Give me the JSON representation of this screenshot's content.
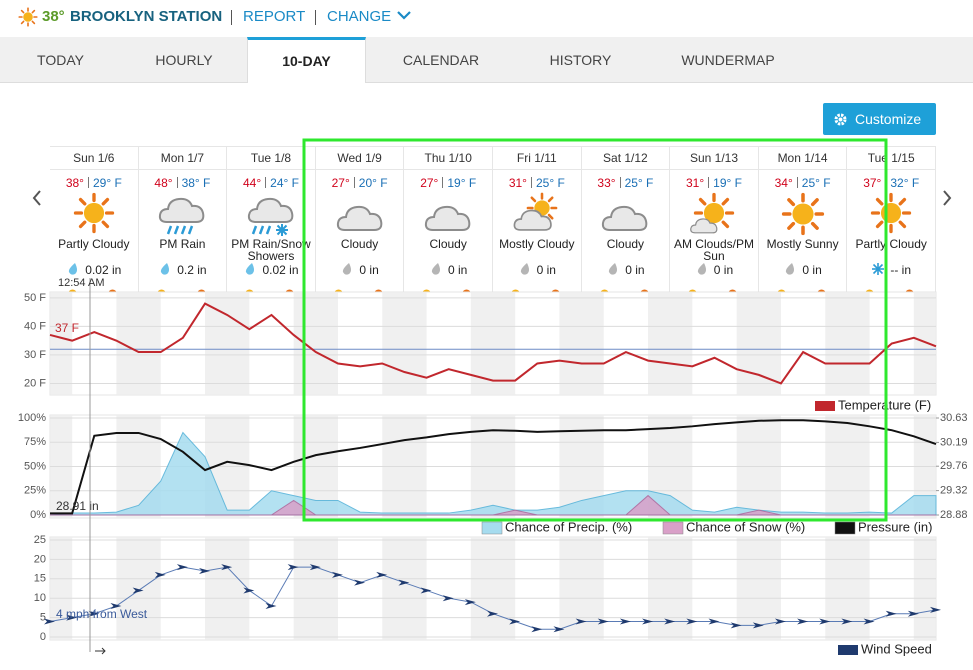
{
  "header": {
    "temp": "38°",
    "station": "BROOKLYN STATION",
    "report": "REPORT",
    "change": "CHANGE"
  },
  "tabs": [
    {
      "label": "TODAY"
    },
    {
      "label": "HOURLY"
    },
    {
      "label": "10-DAY",
      "active": true
    },
    {
      "label": "CALENDAR"
    },
    {
      "label": "HISTORY"
    },
    {
      "label": "WUNDERMAP"
    }
  ],
  "customize": "Customize",
  "days": [
    {
      "name": "Sun 1/6",
      "high": "38°",
      "low": "29° F",
      "condition": "Partly Cloudy",
      "precip": "0.02 in"
    },
    {
      "name": "Mon 1/7",
      "high": "48°",
      "low": "38° F",
      "condition": "PM Rain",
      "precip": "0.2 in"
    },
    {
      "name": "Tue 1/8",
      "high": "44°",
      "low": "24° F",
      "condition": "PM Rain/Snow Showers",
      "precip": "0.02 in"
    },
    {
      "name": "Wed 1/9",
      "high": "27°",
      "low": "20° F",
      "condition": "Cloudy",
      "precip": "0 in"
    },
    {
      "name": "Thu 1/10",
      "high": "27°",
      "low": "19° F",
      "condition": "Cloudy",
      "precip": "0 in"
    },
    {
      "name": "Fri 1/11",
      "high": "31°",
      "low": "25° F",
      "condition": "Mostly Cloudy",
      "precip": "0 in"
    },
    {
      "name": "Sat 1/12",
      "high": "33°",
      "low": "25° F",
      "condition": "Cloudy",
      "precip": "0 in"
    },
    {
      "name": "Sun 1/13",
      "high": "31°",
      "low": "19° F",
      "condition": "AM Clouds/PM Sun",
      "precip": "0 in"
    },
    {
      "name": "Mon 1/14",
      "high": "34°",
      "low": "25° F",
      "condition": "Mostly Sunny",
      "precip": "0 in"
    },
    {
      "name": "Tue 1/15",
      "high": "37°",
      "low": "32° F",
      "condition": "Partly Cloudy",
      "precip": "-- in"
    }
  ],
  "now_label": "12:54 AM",
  "chart_data": [
    {
      "type": "line",
      "name": "Temperature (F)",
      "color": "#c1272d",
      "values": [
        37,
        35,
        38,
        35,
        31,
        31,
        36,
        48,
        44,
        39,
        44,
        37,
        31,
        27,
        26,
        27,
        24,
        22,
        25,
        23,
        21,
        21,
        27,
        28,
        27,
        27,
        31,
        28,
        27,
        26,
        29,
        25,
        23,
        20,
        31,
        27,
        27,
        27,
        34,
        36,
        33
      ],
      "ylim": [
        17,
        51
      ],
      "yticks": [
        {
          "value": 20,
          "label": "20 F"
        },
        {
          "value": 30,
          "label": "30 F"
        },
        {
          "value": 40,
          "label": "40 F"
        },
        {
          "value": 50,
          "label": "50 F"
        }
      ],
      "freezing": 32,
      "current_label": "37 F"
    },
    {
      "type": "area",
      "series": [
        {
          "name": "Chance of Precip. (%)",
          "color": "#a6dcef",
          "values": [
            0,
            2,
            2,
            3,
            10,
            35,
            85,
            60,
            5,
            5,
            25,
            20,
            15,
            15,
            3,
            2,
            2,
            2,
            2,
            5,
            10,
            5,
            5,
            8,
            15,
            20,
            25,
            25,
            20,
            5,
            3,
            8,
            5,
            3,
            3,
            2,
            2,
            3,
            2,
            20,
            20
          ]
        },
        {
          "name": "Chance of Snow (%)",
          "color": "#d9a0c8",
          "values": [
            0,
            0,
            0,
            0,
            0,
            0,
            0,
            0,
            0,
            0,
            0,
            15,
            0,
            0,
            0,
            0,
            0,
            0,
            0,
            0,
            0,
            5,
            0,
            0,
            0,
            0,
            0,
            20,
            0,
            0,
            0,
            0,
            5,
            0,
            0,
            0,
            0,
            0,
            0,
            0,
            0
          ]
        },
        {
          "name": "Pressure (in)",
          "color": "#111111",
          "axis": "y2",
          "values": [
            28.91,
            28.91,
            30.31,
            30.36,
            30.36,
            30.25,
            30.02,
            29.69,
            29.84,
            29.78,
            29.69,
            29.84,
            29.96,
            30.03,
            30.09,
            30.16,
            30.23,
            30.28,
            30.34,
            30.38,
            30.41,
            30.4,
            30.38,
            30.39,
            30.4,
            30.41,
            30.41,
            30.43,
            30.45,
            30.48,
            30.52,
            30.55,
            30.58,
            30.59,
            30.59,
            30.57,
            30.54,
            30.48,
            30.41,
            30.3,
            30.16
          ]
        }
      ],
      "ylim": [
        0,
        100
      ],
      "yticks": [
        {
          "value": 0,
          "label": "0%"
        },
        {
          "value": 25,
          "label": "25%"
        },
        {
          "value": 50,
          "label": "50%"
        },
        {
          "value": 75,
          "label": "75%"
        },
        {
          "value": 100,
          "label": "100%"
        }
      ],
      "y2lim": [
        28.88,
        30.63
      ],
      "y2ticks": [
        28.88,
        29.32,
        29.76,
        30.19,
        30.63
      ],
      "pressure_label": "28.91 in"
    },
    {
      "type": "line",
      "name": "Wind Speed",
      "color": "#1f3a6e",
      "values": [
        4,
        5,
        6,
        8,
        12,
        16,
        18,
        17,
        18,
        12,
        8,
        18,
        18,
        16,
        14,
        16,
        14,
        12,
        10,
        9,
        6,
        4,
        2,
        2,
        4,
        4,
        4,
        4,
        4,
        4,
        4,
        3,
        3,
        4,
        4,
        4,
        4,
        4,
        6,
        6,
        7
      ],
      "ylim": [
        0,
        25
      ],
      "yticks": [
        0,
        5,
        10,
        15,
        20,
        25
      ],
      "current_label": "4 mph from West"
    }
  ]
}
